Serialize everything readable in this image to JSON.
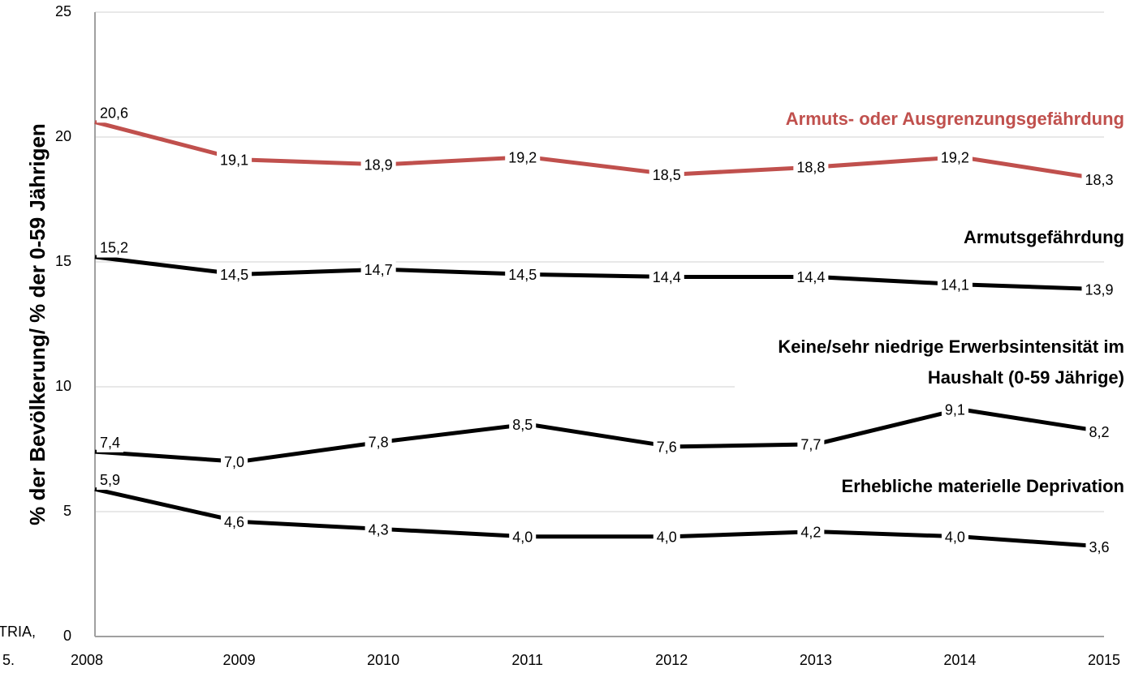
{
  "chart_data": {
    "type": "line",
    "y_label": "% der Bevölkerung/ % der 0-59 Jährigen",
    "categories": [
      "2008",
      "2009",
      "2010",
      "2011",
      "2012",
      "2013",
      "2014",
      "2015"
    ],
    "series": [
      {
        "name": "Armuts- oder Ausgrenzungsgefährdung",
        "color": "#c0504d",
        "values": [
          20.6,
          19.1,
          18.9,
          19.2,
          18.5,
          18.8,
          19.2,
          18.3
        ],
        "value_labels": [
          "20,6",
          "19,1",
          "18,9",
          "19,2",
          "18,5",
          "18,8",
          "19,2",
          "18,3"
        ]
      },
      {
        "name": "Armutsgefährdung",
        "color": "#000000",
        "values": [
          15.2,
          14.5,
          14.7,
          14.5,
          14.4,
          14.4,
          14.1,
          13.9
        ],
        "value_labels": [
          "15,2",
          "14,5",
          "14,7",
          "14,5",
          "14,4",
          "14,4",
          "14,1",
          "13,9"
        ]
      },
      {
        "name": "Keine/sehr niedrige Erwerbsintensität im Haushalt (0-59 Jährige)",
        "color": "#000000",
        "values": [
          7.4,
          7.0,
          7.8,
          8.5,
          7.6,
          7.7,
          9.1,
          8.2
        ],
        "value_labels": [
          "7,4",
          "7,0",
          "7,8",
          "8,5",
          "7,6",
          "7,7",
          "9,1",
          "8,2"
        ]
      },
      {
        "name": "Erhebliche materielle Deprivation",
        "color": "#000000",
        "values": [
          5.9,
          4.6,
          4.3,
          4.0,
          4.0,
          4.2,
          4.0,
          3.6
        ],
        "value_labels": [
          "5,9",
          "4,6",
          "4,3",
          "4,0",
          "4,0",
          "4,2",
          "4,0",
          "3,6"
        ]
      }
    ],
    "ylim": [
      0,
      25
    ],
    "yticks": [
      0,
      5,
      10,
      15,
      20,
      25
    ],
    "grid": true,
    "annotations": [
      "TRIA,",
      "5."
    ]
  }
}
